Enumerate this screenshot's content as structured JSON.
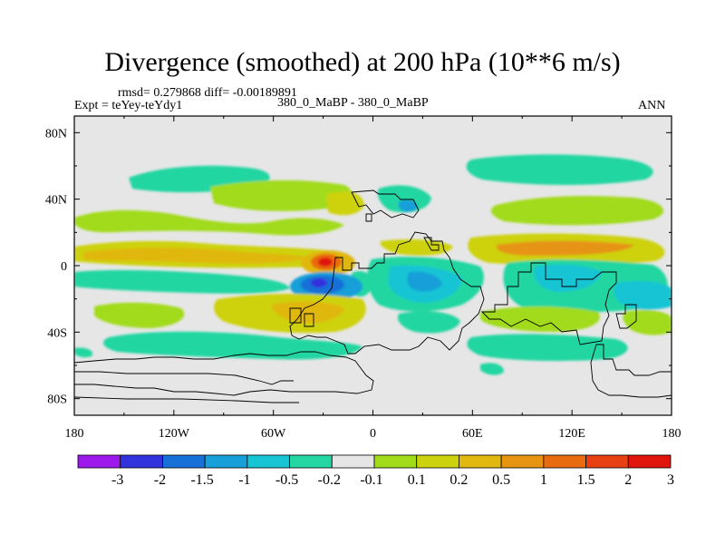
{
  "figure": {
    "title": "Divergence (smoothed) at 200 hPa (10**6 m/s)",
    "stats": "rmsd= 0.279868  diff= -0.00189891",
    "experiment": "Expt = teYey-teYdy1",
    "center_label": "380_0_MaBP - 380_0_MaBP",
    "season": "ANN"
  },
  "chart_data": {
    "type": "filled-contour-map",
    "projection": "cylindrical equidistant",
    "lon_range": [
      -180,
      180
    ],
    "lat_range": [
      -90,
      90
    ],
    "x_ticks": [
      {
        "lon": -180,
        "label": "180"
      },
      {
        "lon": -120,
        "label": "120W"
      },
      {
        "lon": -60,
        "label": "60W"
      },
      {
        "lon": 0,
        "label": "0"
      },
      {
        "lon": 60,
        "label": "60E"
      },
      {
        "lon": 120,
        "label": "120E"
      },
      {
        "lon": 180,
        "label": "180"
      }
    ],
    "y_ticks": [
      {
        "lat": 80,
        "label": "80N"
      },
      {
        "lat": 40,
        "label": "40N"
      },
      {
        "lat": 0,
        "label": "0"
      },
      {
        "lat": -40,
        "label": "40S"
      },
      {
        "lat": -80,
        "label": "80S"
      }
    ],
    "colorbar": {
      "levels": [
        "-3",
        "-2",
        "-1.5",
        "-1",
        "-0.5",
        "-0.2",
        "-0.1",
        "0.1",
        "0.2",
        "0.5",
        "1",
        "1.5",
        "2",
        "3"
      ],
      "colors": [
        "#9d19eb",
        "#3333dd",
        "#1670d8",
        "#169fd8",
        "#17c4d4",
        "#24d6a2",
        "#e6e6e6",
        "#a1db1a",
        "#cdd20e",
        "#e0b80f",
        "#e69412",
        "#e86b10",
        "#e64013",
        "#e0150c"
      ]
    },
    "features": [
      {
        "name": "strong divergence west of 0",
        "lon": -28,
        "lat": 4,
        "value": 3,
        "rx": 6,
        "ry": 3.5
      },
      {
        "name": "convergence below maximum",
        "lon": -33,
        "lat": -8,
        "value": -1.5,
        "rx": 9,
        "ry": 5
      },
      {
        "name": "north tropical band",
        "lon": -110,
        "lat": 3,
        "value": 0.5,
        "rx": 55,
        "ry": 4
      },
      {
        "name": "north tropical band east",
        "lon": 140,
        "lat": 3,
        "value": 0.5,
        "rx": 40,
        "ry": 4
      },
      {
        "name": "equatorial convergence band",
        "lon": 40,
        "lat": -8,
        "value": -0.5,
        "rx": 30,
        "ry": 9
      },
      {
        "name": "pacific convergence",
        "lon": 150,
        "lat": -12,
        "value": -0.5,
        "rx": 25,
        "ry": 6
      },
      {
        "name": "tropical atlantic convergence",
        "lon": -120,
        "lat": -8,
        "value": -0.2,
        "rx": 45,
        "ry": 4
      },
      {
        "name": "north midlatitude band",
        "lon": -60,
        "lat": 33,
        "value": 0.2,
        "rx": 60,
        "ry": 4
      },
      {
        "name": "north midlatitude convergence",
        "lon": -130,
        "lat": 50,
        "value": -0.2,
        "rx": 30,
        "ry": 3
      },
      {
        "name": "south subtropic positive",
        "lon": -70,
        "lat": -28,
        "value": 0.5,
        "rx": 40,
        "ry": 6
      },
      {
        "name": "south midlatitude convergence",
        "lon": -70,
        "lat": -45,
        "value": -0.2,
        "rx": 45,
        "ry": 4
      }
    ]
  }
}
